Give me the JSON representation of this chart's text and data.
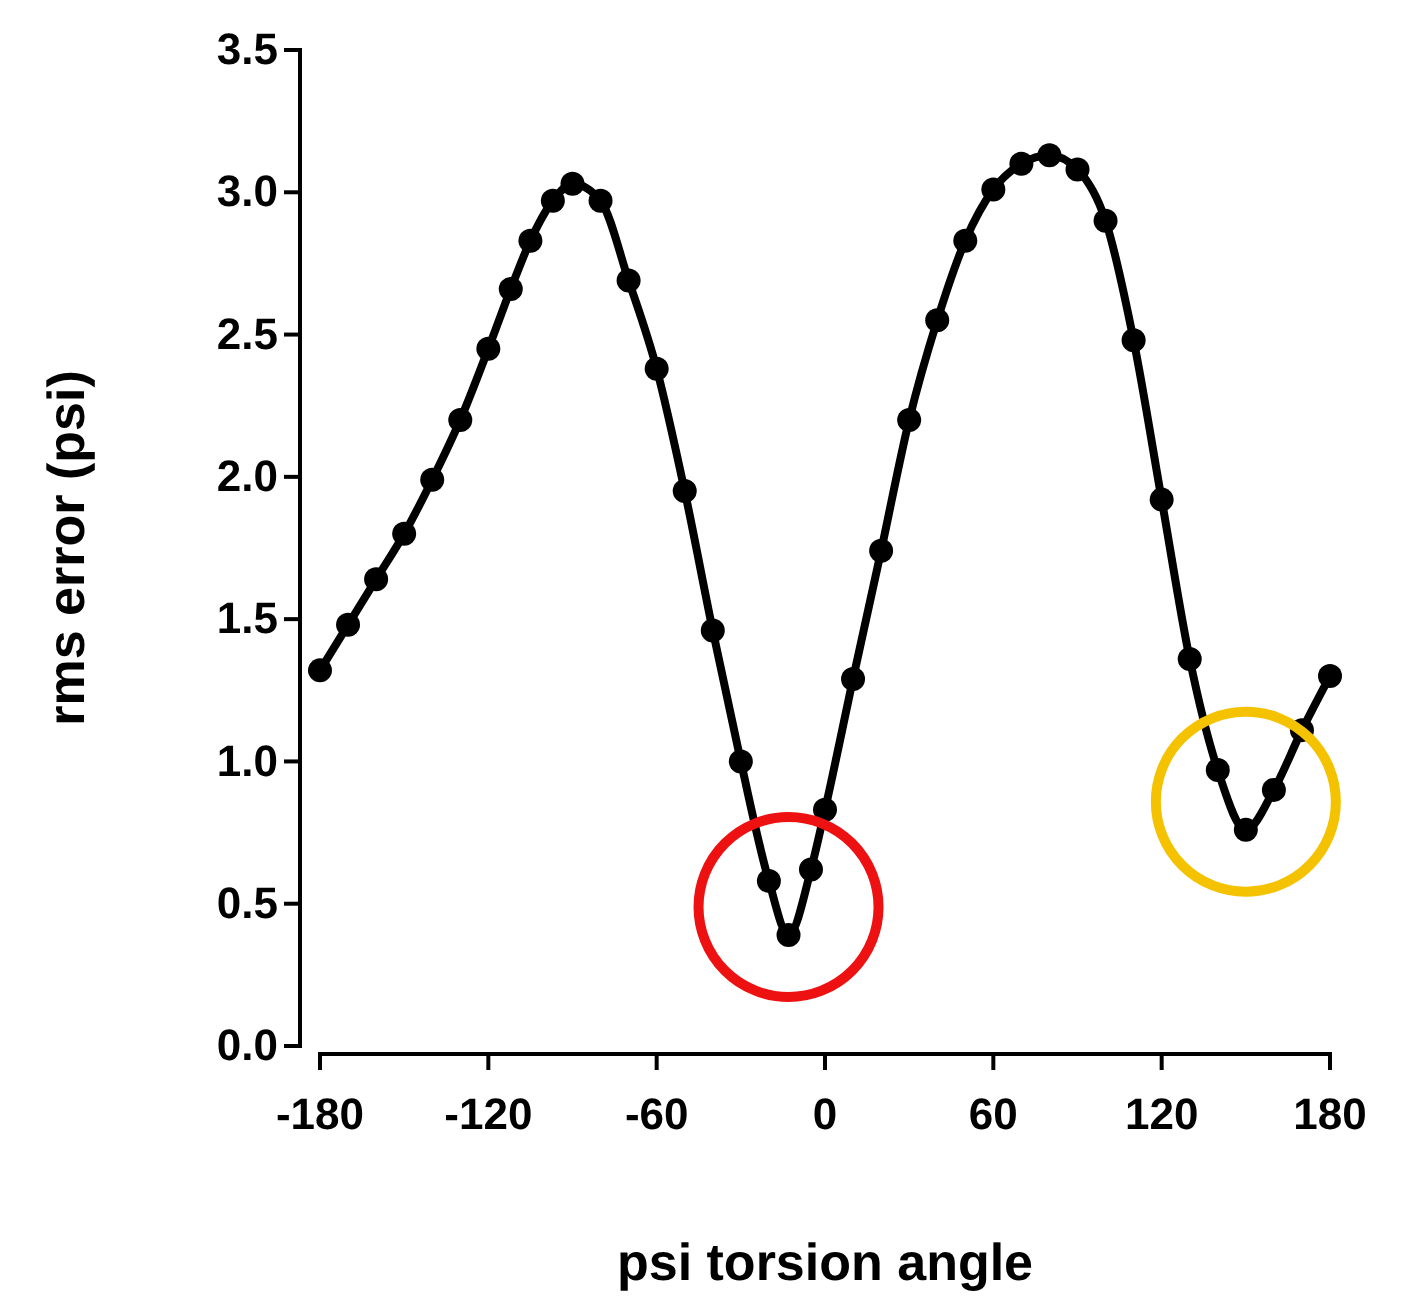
{
  "chart_data": {
    "type": "line",
    "xlabel": "psi torsion angle",
    "ylabel": "rms error (psi)",
    "marker": "circle",
    "color": "#000000",
    "x": [
      -180,
      -170,
      -160,
      -150,
      -140,
      -130,
      -120,
      -112,
      -105,
      -97,
      -90,
      -80,
      -70,
      -60,
      -50,
      -40,
      -30,
      -20,
      -13,
      -5,
      0,
      10,
      20,
      30,
      40,
      50,
      60,
      70,
      80,
      90,
      100,
      110,
      120,
      130,
      140,
      150,
      160,
      170,
      180
    ],
    "values": [
      1.32,
      1.48,
      1.64,
      1.8,
      1.99,
      2.2,
      2.45,
      2.66,
      2.83,
      2.97,
      3.03,
      2.97,
      2.69,
      2.38,
      1.95,
      1.46,
      1.0,
      0.58,
      0.39,
      0.62,
      0.83,
      1.29,
      1.74,
      2.2,
      2.55,
      2.83,
      3.01,
      3.1,
      3.13,
      3.08,
      2.9,
      2.48,
      1.92,
      1.36,
      0.97,
      0.76,
      0.9,
      1.11,
      1.3
    ],
    "xlim": [
      -180,
      180
    ],
    "xticks": [
      -180,
      -120,
      -60,
      0,
      60,
      120,
      180
    ],
    "ylim": [
      0,
      3.5
    ],
    "yticks": [
      {
        "value": 0,
        "label": "0.0"
      },
      0.5,
      {
        "value": 1,
        "label": "1.0"
      },
      1.5,
      {
        "value": 2,
        "label": "2.0"
      },
      2.5,
      {
        "value": 3,
        "label": "3.0"
      },
      3.5
    ]
  }
}
